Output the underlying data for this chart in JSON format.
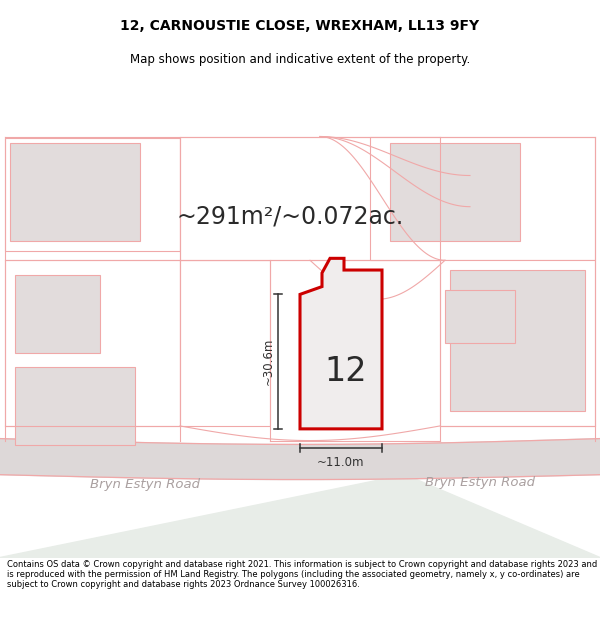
{
  "title_line1": "12, CARNOUSTIE CLOSE, WREXHAM, LL13 9FY",
  "title_line2": "Map shows position and indicative extent of the property.",
  "area_label": "~291m²/~0.072ac.",
  "plot_number": "12",
  "dim_width": "~11.0m",
  "dim_height": "~30.6m",
  "road_label_left": "Bryn Estyn Road",
  "road_label_right": "Bryn Estyn Road",
  "footer_text": "Contains OS data © Crown copyright and database right 2021. This information is subject to Crown copyright and database rights 2023 and is reproduced with the permission of HM Land Registry. The polygons (including the associated geometry, namely x, y co-ordinates) are subject to Crown copyright and database rights 2023 Ordnance Survey 100026316.",
  "bg_map_color": "#f7f4f4",
  "bg_lower_color": "#e8ede8",
  "plot_fill_color": "#f0eded",
  "plot_outline_color": "#cc0000",
  "pink_line": "#f0a8a8",
  "gray_fill": "#e2dcdc",
  "road_fill": "#ddd8d8",
  "dim_color": "#333333",
  "white": "#ffffff",
  "road_label_color": "#aaa0a0",
  "title_fontsize": 10,
  "subtitle_fontsize": 8.5,
  "area_fontsize": 17,
  "plot_num_fontsize": 24,
  "dim_fontsize": 8.5,
  "road_fontsize": 9.5,
  "footer_fontsize": 6.0
}
